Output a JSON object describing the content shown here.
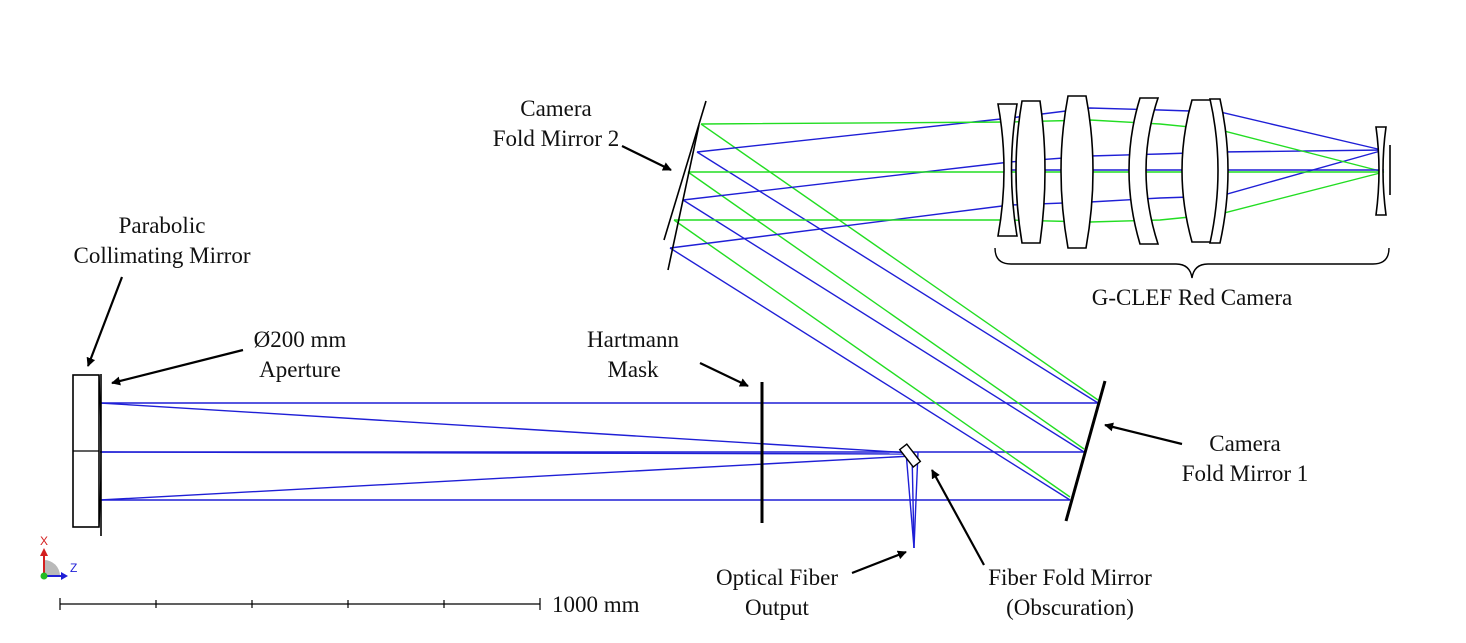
{
  "labels": {
    "collimator_line1": "Parabolic",
    "collimator_line2": "Collimating Mirror",
    "aperture_line1": "Ø200 mm",
    "aperture_line2": "Aperture",
    "hartmann_line1": "Hartmann",
    "hartmann_line2": "Mask",
    "fold2_line1": "Camera",
    "fold2_line2": "Fold Mirror 2",
    "camera": "G-CLEF Red Camera",
    "fold1_line1": "Camera",
    "fold1_line2": "Fold Mirror 1",
    "fiber_out_line1": "Optical Fiber",
    "fiber_out_line2": "Output",
    "fiber_fold_line1": "Fiber Fold Mirror",
    "fiber_fold_line2": "(Obscuration)"
  },
  "axes_triad": {
    "x": "X",
    "z": "Z"
  },
  "scale_bar": {
    "label": "1000 mm"
  },
  "colors": {
    "ray_primary": "#1f1fd6",
    "ray_secondary": "#22dd22",
    "outline": "#000000"
  }
}
